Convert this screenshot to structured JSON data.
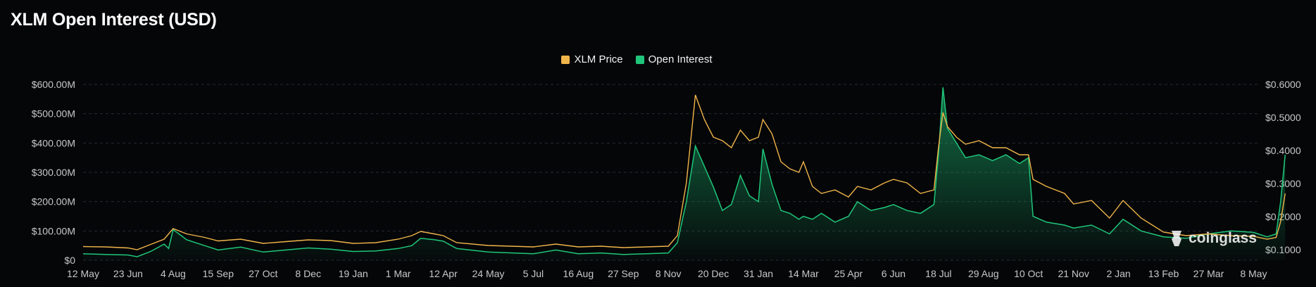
{
  "title": "XLM Open Interest (USD)",
  "legend": {
    "price_label": "XLM Price",
    "oi_label": "Open Interest",
    "price_color": "#f0b54a",
    "oi_color": "#1fc67a"
  },
  "watermark": {
    "text": "coinglass",
    "icon": "coinglass-logo-icon"
  },
  "chart_data": {
    "type": "line",
    "title": "XLM Open Interest (USD)",
    "x_labels": [
      "12 May",
      "23 Jun",
      "4 Aug",
      "15 Sep",
      "27 Oct",
      "8 Dec",
      "19 Jan",
      "1 Mar",
      "12 Apr",
      "24 May",
      "5 Jul",
      "16 Aug",
      "27 Sep",
      "8 Nov",
      "20 Dec",
      "31 Jan",
      "14 Mar",
      "25 Apr",
      "6 Jun",
      "18 Jul",
      "29 Aug",
      "10 Oct",
      "21 Nov",
      "2 Jan",
      "13 Feb",
      "27 Mar",
      "8 May"
    ],
    "y_left": {
      "ticks": [
        "$0",
        "$100.00M",
        "$200.00M",
        "$300.00M",
        "$400.00M",
        "$500.00M",
        "$600.00M"
      ],
      "min": 0,
      "max": 600,
      "unit": "M USD"
    },
    "y_right": {
      "ticks": [
        "$0.1000",
        "$0.2000",
        "$0.3000",
        "$0.4000",
        "$0.5000",
        "$0.6000"
      ],
      "min": 0.1,
      "max": 0.6
    },
    "grid": true,
    "legend_position": "top-center",
    "series": [
      {
        "name": "Open Interest",
        "axis": "left",
        "color": "#1fc67a",
        "style": "area",
        "points": [
          [
            0,
            22
          ],
          [
            0.5,
            20
          ],
          [
            1,
            18
          ],
          [
            1.2,
            12
          ],
          [
            1.5,
            30
          ],
          [
            1.8,
            55
          ],
          [
            1.9,
            40
          ],
          [
            2.0,
            105
          ],
          [
            2.3,
            70
          ],
          [
            2.7,
            50
          ],
          [
            3.0,
            35
          ],
          [
            3.5,
            45
          ],
          [
            4.0,
            28
          ],
          [
            4.5,
            35
          ],
          [
            5.0,
            42
          ],
          [
            5.5,
            38
          ],
          [
            6.0,
            30
          ],
          [
            6.5,
            32
          ],
          [
            7.0,
            40
          ],
          [
            7.3,
            50
          ],
          [
            7.5,
            75
          ],
          [
            7.8,
            70
          ],
          [
            8.0,
            65
          ],
          [
            8.3,
            40
          ],
          [
            9.0,
            28
          ],
          [
            10.0,
            22
          ],
          [
            10.5,
            35
          ],
          [
            11.0,
            22
          ],
          [
            11.5,
            25
          ],
          [
            12.0,
            20
          ],
          [
            12.5,
            22
          ],
          [
            13.0,
            25
          ],
          [
            13.2,
            60
          ],
          [
            13.4,
            200
          ],
          [
            13.6,
            390
          ],
          [
            13.8,
            320
          ],
          [
            14.0,
            250
          ],
          [
            14.2,
            170
          ],
          [
            14.4,
            190
          ],
          [
            14.6,
            290
          ],
          [
            14.8,
            220
          ],
          [
            15.0,
            200
          ],
          [
            15.1,
            380
          ],
          [
            15.3,
            260
          ],
          [
            15.5,
            170
          ],
          [
            15.7,
            160
          ],
          [
            15.9,
            140
          ],
          [
            16.0,
            150
          ],
          [
            16.2,
            140
          ],
          [
            16.4,
            160
          ],
          [
            16.7,
            130
          ],
          [
            17.0,
            150
          ],
          [
            17.2,
            200
          ],
          [
            17.5,
            170
          ],
          [
            17.8,
            180
          ],
          [
            18.0,
            190
          ],
          [
            18.3,
            170
          ],
          [
            18.6,
            160
          ],
          [
            18.9,
            190
          ],
          [
            19.0,
            360
          ],
          [
            19.1,
            590
          ],
          [
            19.2,
            450
          ],
          [
            19.4,
            400
          ],
          [
            19.6,
            350
          ],
          [
            19.9,
            360
          ],
          [
            20.2,
            340
          ],
          [
            20.5,
            360
          ],
          [
            20.8,
            330
          ],
          [
            21.0,
            350
          ],
          [
            21.1,
            150
          ],
          [
            21.4,
            130
          ],
          [
            21.8,
            120
          ],
          [
            22.0,
            110
          ],
          [
            22.4,
            120
          ],
          [
            22.8,
            90
          ],
          [
            23.1,
            140
          ],
          [
            23.5,
            100
          ],
          [
            24.0,
            80
          ],
          [
            24.5,
            75
          ],
          [
            25.0,
            90
          ],
          [
            25.5,
            100
          ],
          [
            26.0,
            95
          ],
          [
            26.3,
            80
          ],
          [
            26.5,
            90
          ],
          [
            26.6,
            200
          ],
          [
            26.7,
            360
          ]
        ]
      },
      {
        "name": "XLM Price",
        "axis": "right",
        "color": "#f0b54a",
        "style": "line",
        "points": [
          [
            0,
            0.119
          ],
          [
            0.5,
            0.118
          ],
          [
            1,
            0.115
          ],
          [
            1.2,
            0.11
          ],
          [
            1.5,
            0.125
          ],
          [
            1.8,
            0.14
          ],
          [
            2.0,
            0.17
          ],
          [
            2.3,
            0.155
          ],
          [
            2.7,
            0.145
          ],
          [
            3.0,
            0.135
          ],
          [
            3.5,
            0.14
          ],
          [
            4.0,
            0.128
          ],
          [
            4.5,
            0.133
          ],
          [
            5.0,
            0.138
          ],
          [
            5.5,
            0.136
          ],
          [
            6.0,
            0.128
          ],
          [
            6.5,
            0.13
          ],
          [
            7.0,
            0.14
          ],
          [
            7.3,
            0.15
          ],
          [
            7.5,
            0.162
          ],
          [
            7.8,
            0.155
          ],
          [
            8.0,
            0.15
          ],
          [
            8.3,
            0.13
          ],
          [
            9.0,
            0.122
          ],
          [
            10.0,
            0.118
          ],
          [
            10.5,
            0.126
          ],
          [
            11.0,
            0.118
          ],
          [
            11.5,
            0.12
          ],
          [
            12.0,
            0.116
          ],
          [
            12.5,
            0.118
          ],
          [
            13.0,
            0.12
          ],
          [
            13.2,
            0.15
          ],
          [
            13.4,
            0.3
          ],
          [
            13.6,
            0.55
          ],
          [
            13.8,
            0.48
          ],
          [
            14.0,
            0.43
          ],
          [
            14.2,
            0.42
          ],
          [
            14.4,
            0.4
          ],
          [
            14.6,
            0.45
          ],
          [
            14.8,
            0.42
          ],
          [
            15.0,
            0.43
          ],
          [
            15.1,
            0.48
          ],
          [
            15.3,
            0.44
          ],
          [
            15.5,
            0.36
          ],
          [
            15.7,
            0.34
          ],
          [
            15.9,
            0.33
          ],
          [
            16.0,
            0.36
          ],
          [
            16.2,
            0.29
          ],
          [
            16.4,
            0.27
          ],
          [
            16.7,
            0.28
          ],
          [
            17.0,
            0.26
          ],
          [
            17.2,
            0.29
          ],
          [
            17.5,
            0.28
          ],
          [
            17.8,
            0.3
          ],
          [
            18.0,
            0.31
          ],
          [
            18.3,
            0.3
          ],
          [
            18.6,
            0.27
          ],
          [
            18.9,
            0.28
          ],
          [
            19.0,
            0.4
          ],
          [
            19.1,
            0.5
          ],
          [
            19.2,
            0.46
          ],
          [
            19.4,
            0.43
          ],
          [
            19.6,
            0.41
          ],
          [
            19.9,
            0.42
          ],
          [
            20.2,
            0.4
          ],
          [
            20.5,
            0.4
          ],
          [
            20.8,
            0.38
          ],
          [
            21.0,
            0.38
          ],
          [
            21.1,
            0.31
          ],
          [
            21.4,
            0.29
          ],
          [
            21.8,
            0.27
          ],
          [
            22.0,
            0.24
          ],
          [
            22.4,
            0.25
          ],
          [
            22.8,
            0.2
          ],
          [
            23.1,
            0.25
          ],
          [
            23.5,
            0.2
          ],
          [
            24.0,
            0.16
          ],
          [
            24.5,
            0.15
          ],
          [
            25.0,
            0.155
          ],
          [
            25.5,
            0.15
          ],
          [
            26.0,
            0.148
          ],
          [
            26.3,
            0.14
          ],
          [
            26.5,
            0.145
          ],
          [
            26.6,
            0.19
          ],
          [
            26.7,
            0.27
          ]
        ]
      }
    ]
  }
}
